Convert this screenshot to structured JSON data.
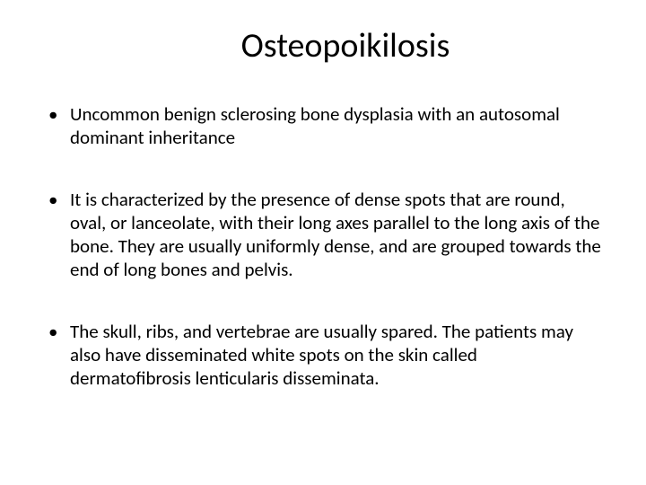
{
  "slide": {
    "title": "Osteopoikilosis",
    "title_fontsize": 38,
    "body_fontsize": 21,
    "text_color": "#000000",
    "background_color": "#ffffff",
    "bullets": [
      "Uncommon benign sclerosing bone dysplasia with an autosomal dominant inheritance",
      " It is characterized by the presence of dense spots that are round, oval, or lanceolate, with their long axes parallel to the long axis of the bone. They are usually uniformly dense, and are grouped towards the end of long bones and pelvis.",
      " The skull, ribs, and vertebrae are usually spared. The patients may also have disseminated white spots on the skin called dermatofibrosis lenticularis disseminata."
    ]
  }
}
